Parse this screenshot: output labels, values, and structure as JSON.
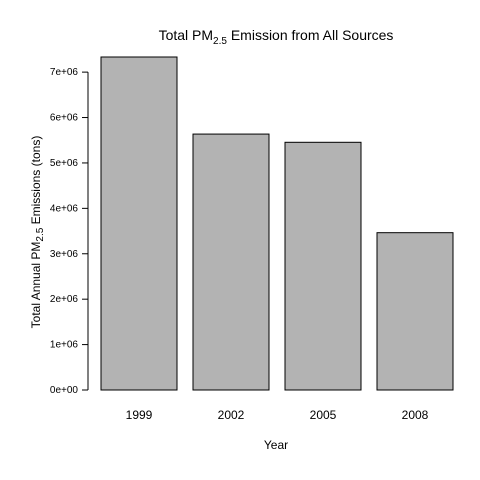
{
  "chart_data": {
    "type": "bar",
    "title": {
      "main": "Total PM",
      "sub": "2.5",
      "rest": " Emission from All Sources"
    },
    "xlabel": "Year",
    "ylabel": {
      "main": "Total Annual PM",
      "sub": "2.5",
      "rest": " Emissions (tons)"
    },
    "categories": [
      "1999",
      "2002",
      "2005",
      "2008"
    ],
    "values": [
      7332967,
      5635780,
      5454703,
      3464206
    ],
    "ylim": [
      0,
      7500000
    ],
    "yticks": [
      0,
      1000000,
      2000000,
      3000000,
      4000000,
      5000000,
      6000000,
      7000000
    ],
    "ytick_labels": [
      "0e+00",
      "1e+06",
      "2e+06",
      "3e+06",
      "4e+06",
      "5e+06",
      "6e+06",
      "7e+06"
    ],
    "grid": false,
    "legend": "none",
    "bar_color": "#b3b3b3",
    "bar_border_color": "#000000"
  }
}
